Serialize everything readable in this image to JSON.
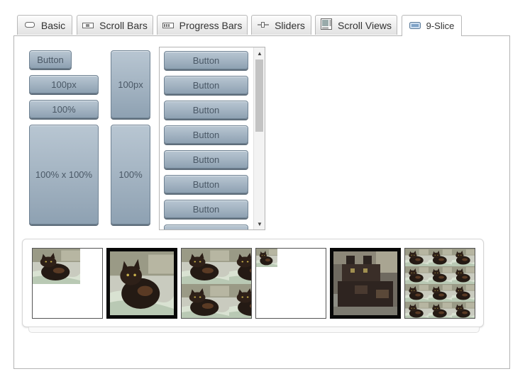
{
  "tabs": [
    {
      "label": "Basic",
      "icon": "basic-icon"
    },
    {
      "label": "Scroll Bars",
      "icon": "scrollbars-icon"
    },
    {
      "label": "Progress Bars",
      "icon": "progressbars-icon"
    },
    {
      "label": "Sliders",
      "icon": "sliders-icon"
    },
    {
      "label": "Scroll Views",
      "icon": "scrollviews-icon"
    },
    {
      "label": "9-Slice",
      "icon": "nineslice-icon"
    }
  ],
  "active_tab": "9-Slice",
  "buttons": {
    "small": "Button",
    "px100": "100px",
    "pct100": "100%",
    "pct100x100": "100% x 100%",
    "tall_px100": "100px",
    "tall_pct100": "100%"
  },
  "scroll_list": {
    "items": [
      "Button",
      "Button",
      "Button",
      "Button",
      "Button",
      "Button",
      "Button",
      "Button"
    ]
  },
  "images": [
    {
      "name": "cat-image-small-unstretched",
      "frame": "thin"
    },
    {
      "name": "cat-image-framed",
      "frame": "thick"
    },
    {
      "name": "cat-image-tiled",
      "frame": "thin"
    },
    {
      "name": "cat-image-tiny",
      "frame": "thin"
    },
    {
      "name": "cat-image-pixelated-zoom",
      "frame": "thick"
    },
    {
      "name": "cat-image-tiled-small",
      "frame": "thin"
    }
  ],
  "colors": {
    "button_top": "#b8c6d2",
    "button_bottom": "#8ea1b2",
    "button_text": "#4a5866",
    "tab_border": "#b9b9b9"
  }
}
